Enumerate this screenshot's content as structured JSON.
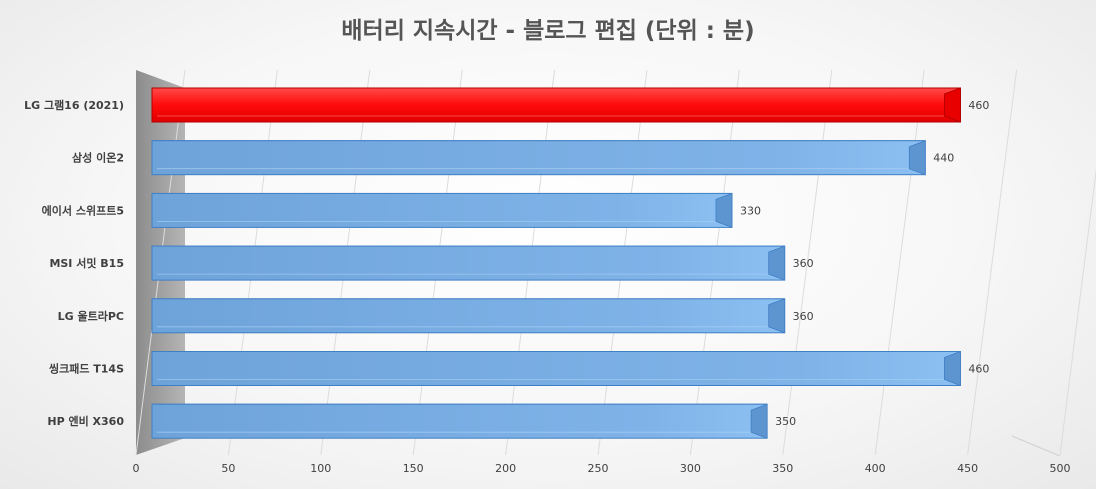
{
  "chart_data": {
    "type": "bar",
    "orientation": "horizontal",
    "style": "3d",
    "title": "배터리 지속시간 - 블로그 편집 (단위 : 분)",
    "categories": [
      "LG 그램16 (2021)",
      "삼성 이온2",
      "에이서 스위프트5",
      "MSI 서밋 B15",
      "LG 울트라PC",
      "씽크패드 T14S",
      "HP 엔비 X360"
    ],
    "values": [
      460,
      440,
      330,
      360,
      360,
      460,
      350
    ],
    "data_labels": [
      "460",
      "440",
      "330",
      "360",
      "360",
      "460",
      "350"
    ],
    "xlim": [
      0,
      500
    ],
    "x_ticks": [
      "0",
      "50",
      "100",
      "150",
      "200",
      "250",
      "300",
      "350",
      "400",
      "450",
      "500"
    ],
    "grid": true,
    "legend": "none",
    "colors": {
      "highlight": "#ff1a1a",
      "default": "#6fa8e0",
      "default_edge": "#3f7fc4",
      "highlight_edge": "#b00000"
    },
    "highlight_index": 0
  }
}
